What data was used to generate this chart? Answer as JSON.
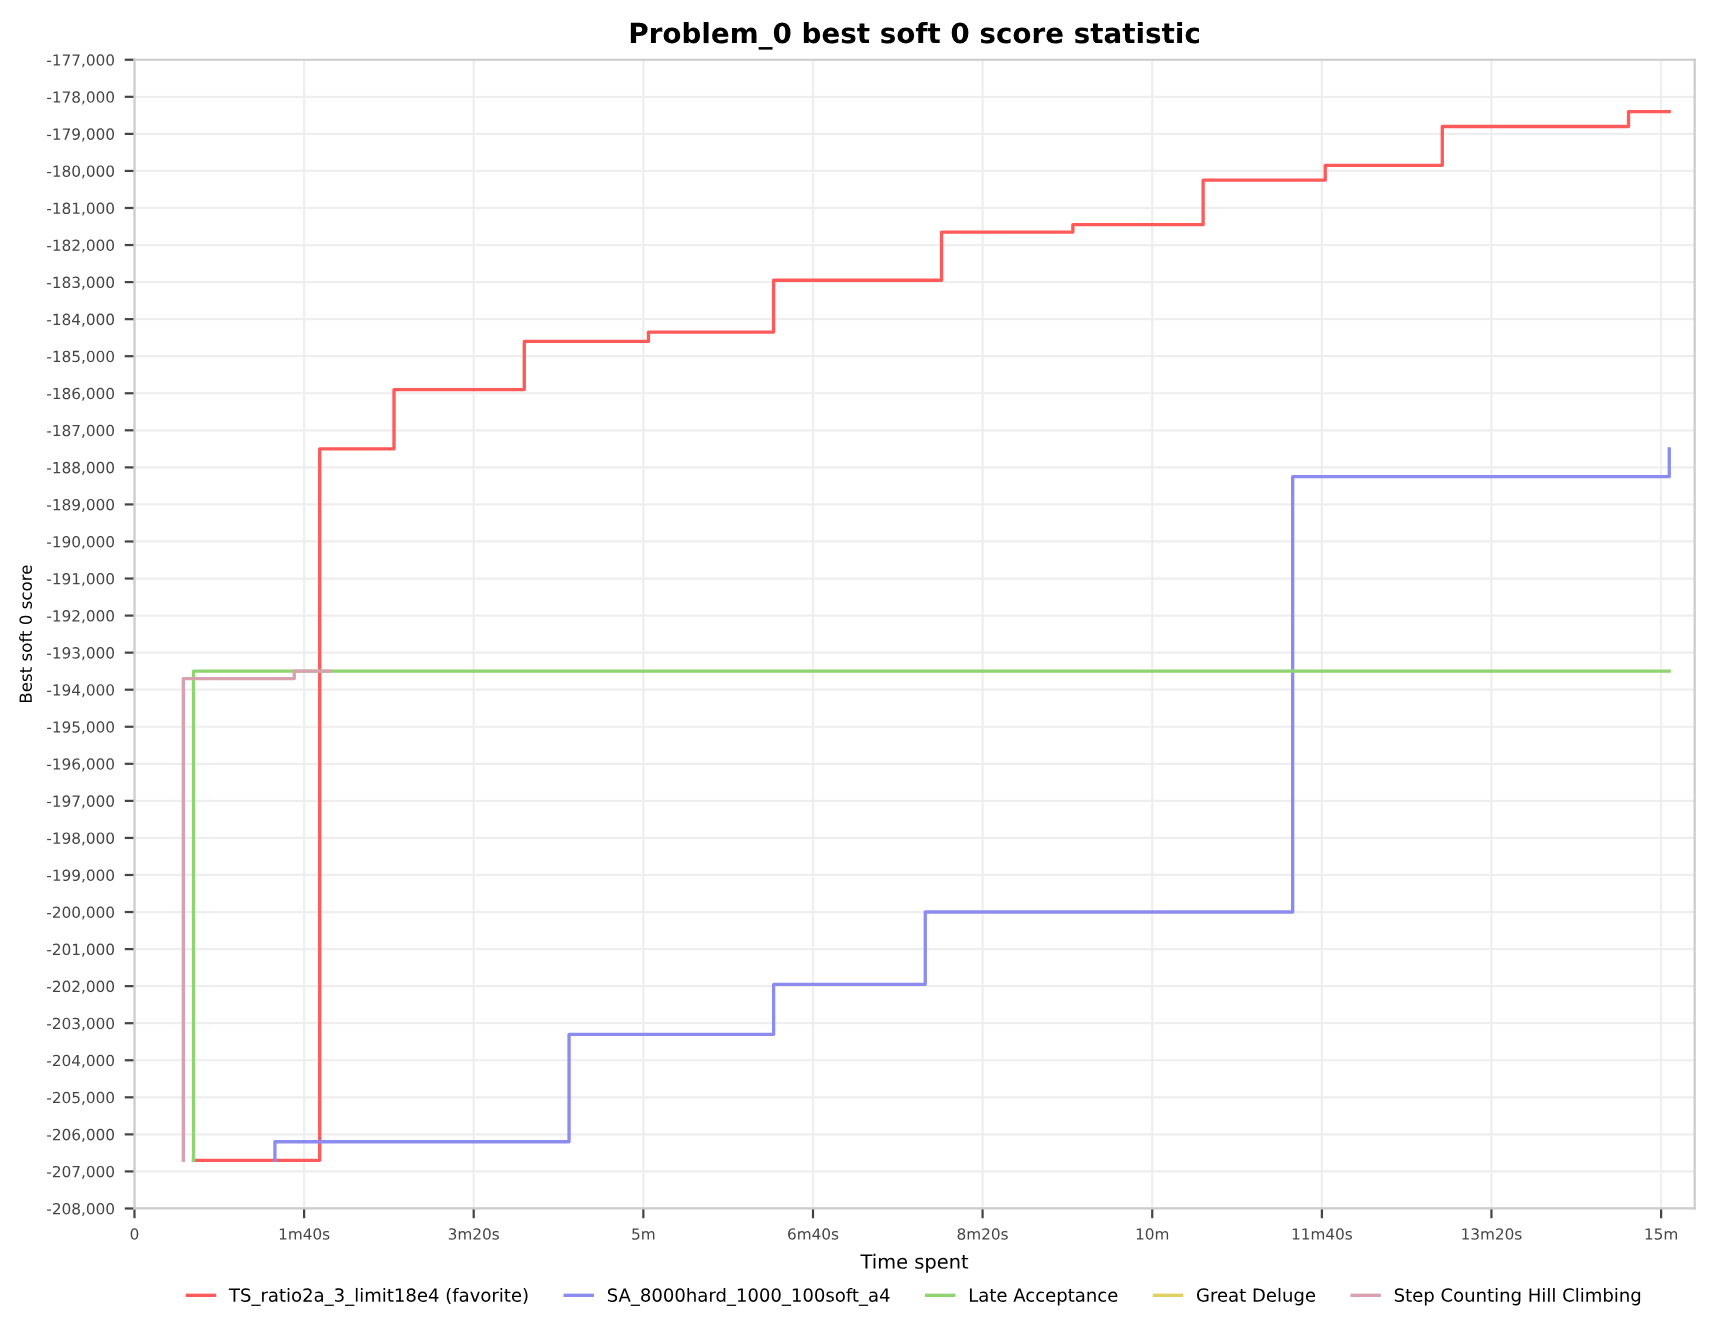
{
  "chart_data": {
    "type": "line",
    "title": "Problem_0 best soft 0 score statistic",
    "xlabel": "Time spent",
    "ylabel": "Best soft 0 score",
    "xlim": [
      0,
      15.33
    ],
    "ylim": [
      -208000,
      -177000
    ],
    "xticks": [
      0,
      {
        "value": 1.667,
        "label": "1m40s"
      },
      {
        "value": 3.333,
        "label": "3m20s"
      },
      {
        "value": 5,
        "label": "5m"
      },
      {
        "value": 6.667,
        "label": "6m40s"
      },
      {
        "value": 8.333,
        "label": "8m20s"
      },
      {
        "value": 10,
        "label": "10m"
      },
      {
        "value": 11.667,
        "label": "11m40s"
      },
      {
        "value": 13.333,
        "label": "13m20s"
      },
      {
        "value": 15,
        "label": "15m"
      }
    ],
    "yticks": [
      {
        "value": -177000,
        "label": "-177,000"
      },
      {
        "value": -178000,
        "label": "-178,000"
      },
      {
        "value": -179000,
        "label": "-179,000"
      },
      {
        "value": -180000,
        "label": "-180,000"
      },
      {
        "value": -181000,
        "label": "-181,000"
      },
      {
        "value": -182000,
        "label": "-182,000"
      },
      {
        "value": -183000,
        "label": "-183,000"
      },
      {
        "value": -184000,
        "label": "-184,000"
      },
      {
        "value": -185000,
        "label": "-185,000"
      },
      {
        "value": -186000,
        "label": "-186,000"
      },
      {
        "value": -187000,
        "label": "-187,000"
      },
      {
        "value": -188000,
        "label": "-188,000"
      },
      {
        "value": -189000,
        "label": "-189,000"
      },
      {
        "value": -190000,
        "label": "-190,000"
      },
      {
        "value": -191000,
        "label": "-191,000"
      },
      {
        "value": -192000,
        "label": "-192,000"
      },
      {
        "value": -193000,
        "label": "-193,000"
      },
      {
        "value": -194000,
        "label": "-194,000"
      },
      {
        "value": -195000,
        "label": "-195,000"
      },
      {
        "value": -196000,
        "label": "-196,000"
      },
      {
        "value": -197000,
        "label": "-197,000"
      },
      {
        "value": -198000,
        "label": "-198,000"
      },
      {
        "value": -199000,
        "label": "-199,000"
      },
      {
        "value": -200000,
        "label": "-200,000"
      },
      {
        "value": -201000,
        "label": "-201,000"
      },
      {
        "value": -202000,
        "label": "-202,000"
      },
      {
        "value": -203000,
        "label": "-203,000"
      },
      {
        "value": -204000,
        "label": "-204,000"
      },
      {
        "value": -205000,
        "label": "-205,000"
      },
      {
        "value": -206000,
        "label": "-206,000"
      },
      {
        "value": -207000,
        "label": "-207,000"
      },
      {
        "value": -208000,
        "label": "-208,000"
      }
    ],
    "grid": true,
    "legend": "bottom",
    "marker": "none",
    "line_style": "solid",
    "series": [
      {
        "name": "TS_ratio2a_3_limit18e4 (favorite)",
        "color": "#ff5a5a",
        "x": [
          0.58,
          1.82,
          1.82,
          2.55,
          2.55,
          3.83,
          3.83,
          5.05,
          5.05,
          6.28,
          6.28,
          7.93,
          7.93,
          9.22,
          9.22,
          10.5,
          10.5,
          11.7,
          11.7,
          12.85,
          12.85,
          14.68,
          14.68,
          15.08
        ],
        "values": [
          -206700,
          -206700,
          -187500,
          -187500,
          -185900,
          -185900,
          -184600,
          -184600,
          -184350,
          -184350,
          -182950,
          -182950,
          -181650,
          -181650,
          -181450,
          -181450,
          -180250,
          -180250,
          -179850,
          -179850,
          -178800,
          -178800,
          -178400,
          -178400
        ]
      },
      {
        "name": "SA_8000hard_1000_100soft_a4",
        "color": "#8c8cf0",
        "x": [
          1.38,
          1.38,
          4.27,
          4.27,
          6.28,
          6.28,
          7.77,
          7.77,
          11.38,
          11.38,
          15.08,
          15.08
        ],
        "values": [
          -206700,
          -206200,
          -206200,
          -203300,
          -203300,
          -201950,
          -201950,
          -200000,
          -200000,
          -188250,
          -188250,
          -187500
        ]
      },
      {
        "name": "Late Acceptance",
        "color": "#8fd470",
        "x": [
          0.58,
          0.58,
          15.08
        ],
        "values": [
          -206700,
          -193500,
          -193500
        ]
      },
      {
        "name": "Great Deluge",
        "color": "#e0d060"
      },
      {
        "name": "Step Counting Hill Climbing",
        "color": "#d9a0b0",
        "x": [
          0.48,
          0.48,
          1.57,
          1.57,
          1.92
        ],
        "values": [
          -206700,
          -193700,
          -193700,
          -193500,
          -193500
        ]
      }
    ]
  }
}
